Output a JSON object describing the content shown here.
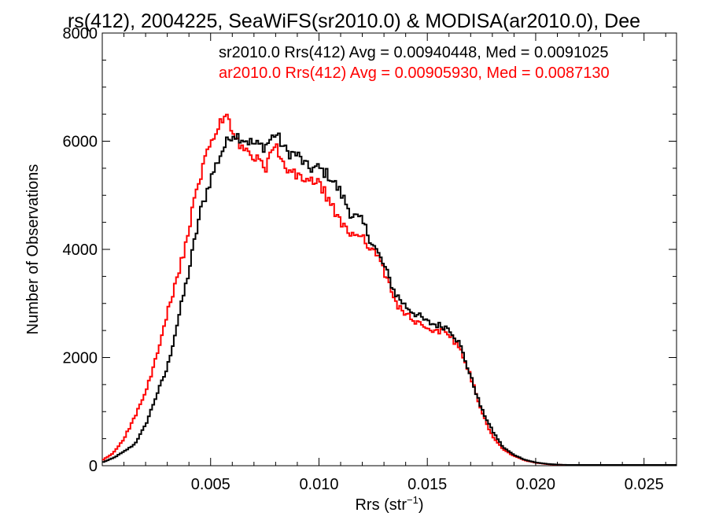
{
  "chart_data": {
    "type": "line",
    "title": "rs(412), 2004225, SeaWiFS(sr2010.0) & MODISA(ar2010.0), Dee",
    "xlabel": "Rrs (str",
    "xlabel_sup": "−1",
    "xlabel_end": ")",
    "ylabel": "Number of Observations",
    "xlim": [
      0.0,
      0.0265
    ],
    "ylim": [
      0,
      8000
    ],
    "x_ticks": [
      0.005,
      0.01,
      0.015,
      0.02,
      0.025
    ],
    "x_tick_labels": [
      "0.005",
      "0.010",
      "0.015",
      "0.020",
      "0.025"
    ],
    "y_ticks": [
      0,
      2000,
      4000,
      6000,
      8000
    ],
    "y_tick_labels": [
      "0",
      "2000",
      "4000",
      "6000",
      "8000"
    ],
    "grid": false,
    "legend_position": "top-right",
    "series": [
      {
        "name": "sr2010.0 Rrs(412) Avg = 0.00940448, Med = 0.0091025",
        "color": "#000000",
        "points": [
          [
            0.0,
            60
          ],
          [
            0.0005,
            140
          ],
          [
            0.001,
            260
          ],
          [
            0.0015,
            400
          ],
          [
            0.002,
            750
          ],
          [
            0.0025,
            1300
          ],
          [
            0.003,
            1800
          ],
          [
            0.0035,
            2700
          ],
          [
            0.004,
            3600
          ],
          [
            0.0045,
            4650
          ],
          [
            0.005,
            5300
          ],
          [
            0.0055,
            5800
          ],
          [
            0.006,
            6150
          ],
          [
            0.0065,
            6050
          ],
          [
            0.007,
            5950
          ],
          [
            0.0075,
            5900
          ],
          [
            0.008,
            6150
          ],
          [
            0.0085,
            5800
          ],
          [
            0.009,
            5750
          ],
          [
            0.0095,
            5500
          ],
          [
            0.01,
            5500
          ],
          [
            0.0105,
            5350
          ],
          [
            0.011,
            5050
          ],
          [
            0.0115,
            4650
          ],
          [
            0.012,
            4500
          ],
          [
            0.0125,
            4100
          ],
          [
            0.013,
            3700
          ],
          [
            0.0135,
            3200
          ],
          [
            0.014,
            2950
          ],
          [
            0.0145,
            2800
          ],
          [
            0.015,
            2650
          ],
          [
            0.0155,
            2600
          ],
          [
            0.016,
            2550
          ],
          [
            0.0165,
            2250
          ],
          [
            0.017,
            1650
          ],
          [
            0.0175,
            1050
          ],
          [
            0.018,
            650
          ],
          [
            0.0185,
            340
          ],
          [
            0.019,
            200
          ],
          [
            0.0195,
            110
          ],
          [
            0.02,
            60
          ],
          [
            0.0205,
            35
          ],
          [
            0.021,
            20
          ],
          [
            0.022,
            8
          ],
          [
            0.023,
            3
          ],
          [
            0.0265,
            0
          ]
        ]
      },
      {
        "name": "ar2010.0 Rrs(412) Avg = 0.00905930, Med = 0.0087130",
        "color": "#ff0000",
        "points": [
          [
            0.0,
            100
          ],
          [
            0.0005,
            230
          ],
          [
            0.001,
            500
          ],
          [
            0.0015,
            900
          ],
          [
            0.002,
            1350
          ],
          [
            0.0025,
            2000
          ],
          [
            0.003,
            2800
          ],
          [
            0.0035,
            3500
          ],
          [
            0.004,
            4400
          ],
          [
            0.0045,
            5300
          ],
          [
            0.005,
            6000
          ],
          [
            0.0055,
            6350
          ],
          [
            0.0058,
            6500
          ],
          [
            0.006,
            6100
          ],
          [
            0.0065,
            5850
          ],
          [
            0.007,
            5700
          ],
          [
            0.0075,
            5500
          ],
          [
            0.008,
            5900
          ],
          [
            0.0085,
            5450
          ],
          [
            0.009,
            5350
          ],
          [
            0.0095,
            5300
          ],
          [
            0.01,
            5200
          ],
          [
            0.0105,
            4900
          ],
          [
            0.011,
            4450
          ],
          [
            0.0115,
            4300
          ],
          [
            0.012,
            4250
          ],
          [
            0.0125,
            4000
          ],
          [
            0.013,
            3600
          ],
          [
            0.0135,
            3050
          ],
          [
            0.014,
            2800
          ],
          [
            0.0145,
            2650
          ],
          [
            0.015,
            2500
          ],
          [
            0.0155,
            2500
          ],
          [
            0.016,
            2450
          ],
          [
            0.0165,
            2150
          ],
          [
            0.017,
            1650
          ],
          [
            0.0175,
            1000
          ],
          [
            0.018,
            550
          ],
          [
            0.0185,
            300
          ],
          [
            0.019,
            180
          ],
          [
            0.0195,
            100
          ],
          [
            0.02,
            55
          ],
          [
            0.0205,
            30
          ],
          [
            0.021,
            18
          ],
          [
            0.022,
            8
          ],
          [
            0.023,
            3
          ],
          [
            0.0265,
            0
          ]
        ]
      }
    ]
  }
}
